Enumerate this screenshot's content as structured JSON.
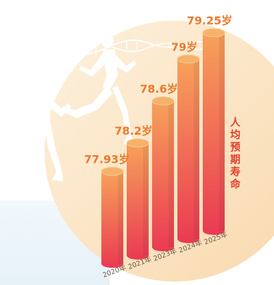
{
  "chart_data": {
    "type": "bar",
    "title": "人均预期寿命",
    "categories": [
      "2020年",
      "2021年",
      "2023年",
      "2024年",
      "2025年"
    ],
    "values": [
      77.93,
      78.2,
      78.6,
      79,
      79.25
    ],
    "value_labels": [
      "77.93岁",
      "78.2岁",
      "78.6岁",
      "79岁",
      "79.25岁"
    ],
    "unit": "岁",
    "grid": false,
    "legend": "none",
    "colors": {
      "bar_top": "#f7a25a",
      "bar_bottom": "#ea3a52",
      "cap": "#f6b26b",
      "label": "#ea7a2c",
      "title": "#e0402f",
      "disc": "#fbe3c0",
      "panel": "#eaf4fa"
    }
  },
  "decor": {
    "icons": [
      "runner-woman-icon",
      "runner-man-icon",
      "dna-helix-icon"
    ]
  }
}
